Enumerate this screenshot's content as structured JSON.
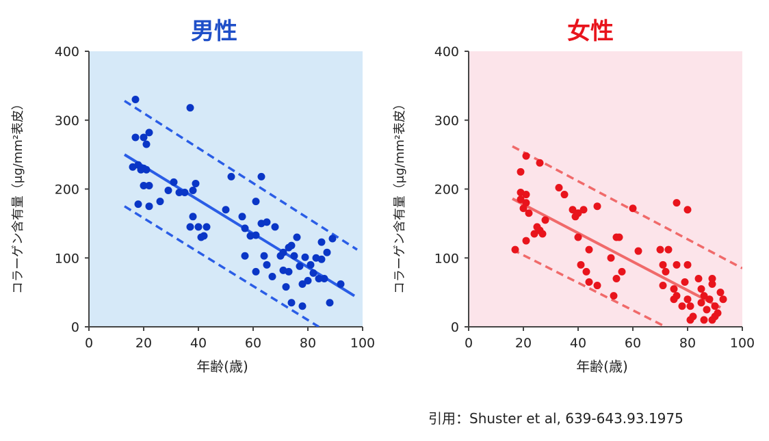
{
  "citation": "引用：Shuster et al, 639-643.93.1975",
  "chart_data": [
    {
      "type": "scatter",
      "title": "男性",
      "xlabel": "年齢(歳)",
      "ylabel": "コラーゲン含有量（μg/mm²表皮）",
      "xlim": [
        0,
        100
      ],
      "ylim": [
        0,
        400
      ],
      "xticks": [
        0,
        20,
        40,
        60,
        80,
        100
      ],
      "yticks": [
        0,
        100,
        200,
        300,
        400
      ],
      "title_color": "#1f4fc8",
      "background_color": "#d6e9f8",
      "point_color": "#0a36c6",
      "line_color": "#2a5de6",
      "series": [
        {
          "points": [
            [
              17,
              330
            ],
            [
              17,
              275
            ],
            [
              20,
              275
            ],
            [
              21,
              265
            ],
            [
              22,
              282
            ],
            [
              16,
              232
            ],
            [
              18,
              235
            ],
            [
              19,
              228
            ],
            [
              20,
              230
            ],
            [
              21,
              228
            ],
            [
              20,
              205
            ],
            [
              22,
              205
            ],
            [
              18,
              178
            ],
            [
              22,
              175
            ],
            [
              26,
              182
            ],
            [
              29,
              198
            ],
            [
              31,
              210
            ],
            [
              33,
              195
            ],
            [
              35,
              195
            ],
            [
              37,
              318
            ],
            [
              39,
              208
            ],
            [
              38,
              198
            ],
            [
              38,
              160
            ],
            [
              37,
              145
            ],
            [
              40,
              145
            ],
            [
              43,
              145
            ],
            [
              41,
              130
            ],
            [
              42,
              132
            ],
            [
              52,
              218
            ],
            [
              50,
              170
            ],
            [
              56,
              160
            ],
            [
              57,
              143
            ],
            [
              59,
              132
            ],
            [
              61,
              133
            ],
            [
              61,
              182
            ],
            [
              63,
              218
            ],
            [
              63,
              150
            ],
            [
              65,
              152
            ],
            [
              68,
              145
            ],
            [
              57,
              103
            ],
            [
              64,
              103
            ],
            [
              61,
              80
            ],
            [
              65,
              90
            ],
            [
              67,
              73
            ],
            [
              70,
              103
            ],
            [
              71,
              108
            ],
            [
              71,
              82
            ],
            [
              72,
              58
            ],
            [
              73,
              115
            ],
            [
              74,
              118
            ],
            [
              73,
              80
            ],
            [
              75,
              103
            ],
            [
              76,
              130
            ],
            [
              77,
              88
            ],
            [
              78,
              30
            ],
            [
              78,
              62
            ],
            [
              79,
              101
            ],
            [
              81,
              90
            ],
            [
              80,
              67
            ],
            [
              82,
              78
            ],
            [
              83,
              100
            ],
            [
              84,
              70
            ],
            [
              85,
              98
            ],
            [
              86,
              70
            ],
            [
              87,
              108
            ],
            [
              85,
              123
            ],
            [
              88,
              35
            ],
            [
              89,
              128
            ],
            [
              92,
              62
            ],
            [
              74,
              35
            ]
          ]
        }
      ],
      "regression": {
        "x": [
          13,
          97
        ],
        "y": [
          250,
          45
        ]
      },
      "band_upper": {
        "x": [
          13,
          98
        ],
        "y": [
          328,
          112
        ]
      },
      "band_lower": {
        "x": [
          13,
          84
        ],
        "y": [
          175,
          0
        ]
      }
    },
    {
      "type": "scatter",
      "title": "女性",
      "xlabel": "年齢(歳)",
      "ylabel": "コラーゲン含有量（μg/mm²表皮）",
      "xlim": [
        0,
        100
      ],
      "ylim": [
        0,
        400
      ],
      "xticks": [
        0,
        20,
        40,
        60,
        80,
        100
      ],
      "yticks": [
        0,
        100,
        200,
        300,
        400
      ],
      "title_color": "#e8141c",
      "background_color": "#fce4ea",
      "point_color": "#e8141c",
      "line_color": "#f06a6a",
      "series": [
        {
          "points": [
            [
              21,
              248
            ],
            [
              26,
              238
            ],
            [
              19,
              225
            ],
            [
              17,
              112
            ],
            [
              19,
              195
            ],
            [
              21,
              192
            ],
            [
              19,
              185
            ],
            [
              20,
              172
            ],
            [
              21,
              180
            ],
            [
              22,
              165
            ],
            [
              25,
              145
            ],
            [
              26,
              140
            ],
            [
              27,
              135
            ],
            [
              28,
              155
            ],
            [
              21,
              125
            ],
            [
              24,
              135
            ],
            [
              33,
              202
            ],
            [
              35,
              192
            ],
            [
              38,
              170
            ],
            [
              40,
              165
            ],
            [
              39,
              160
            ],
            [
              42,
              170
            ],
            [
              40,
              130
            ],
            [
              47,
              175
            ],
            [
              44,
              112
            ],
            [
              41,
              90
            ],
            [
              43,
              80
            ],
            [
              44,
              65
            ],
            [
              47,
              60
            ],
            [
              52,
              100
            ],
            [
              54,
              130
            ],
            [
              55,
              130
            ],
            [
              56,
              80
            ],
            [
              54,
              70
            ],
            [
              53,
              45
            ],
            [
              60,
              172
            ],
            [
              62,
              110
            ],
            [
              70,
              112
            ],
            [
              73,
              112
            ],
            [
              71,
              90
            ],
            [
              72,
              80
            ],
            [
              76,
              180
            ],
            [
              80,
              170
            ],
            [
              76,
              90
            ],
            [
              80,
              90
            ],
            [
              71,
              60
            ],
            [
              75,
              55
            ],
            [
              75,
              40
            ],
            [
              76,
              45
            ],
            [
              78,
              30
            ],
            [
              79,
              65
            ],
            [
              80,
              40
            ],
            [
              81,
              30
            ],
            [
              82,
              15
            ],
            [
              84,
              70
            ],
            [
              85,
              55
            ],
            [
              86,
              45
            ],
            [
              85,
              35
            ],
            [
              87,
              25
            ],
            [
              88,
              40
            ],
            [
              89,
              70
            ],
            [
              89,
              62
            ],
            [
              90,
              30
            ],
            [
              90,
              15
            ],
            [
              91,
              20
            ],
            [
              92,
              50
            ],
            [
              93,
              40
            ],
            [
              89,
              10
            ],
            [
              86,
              10
            ],
            [
              81,
              10
            ]
          ]
        }
      ],
      "regression": {
        "x": [
          16,
          92
        ],
        "y": [
          186,
          28
        ]
      },
      "band_upper": {
        "x": [
          16,
          100
        ],
        "y": [
          262,
          85
        ]
      },
      "band_lower": {
        "x": [
          16,
          72
        ],
        "y": [
          112,
          0
        ]
      }
    }
  ]
}
